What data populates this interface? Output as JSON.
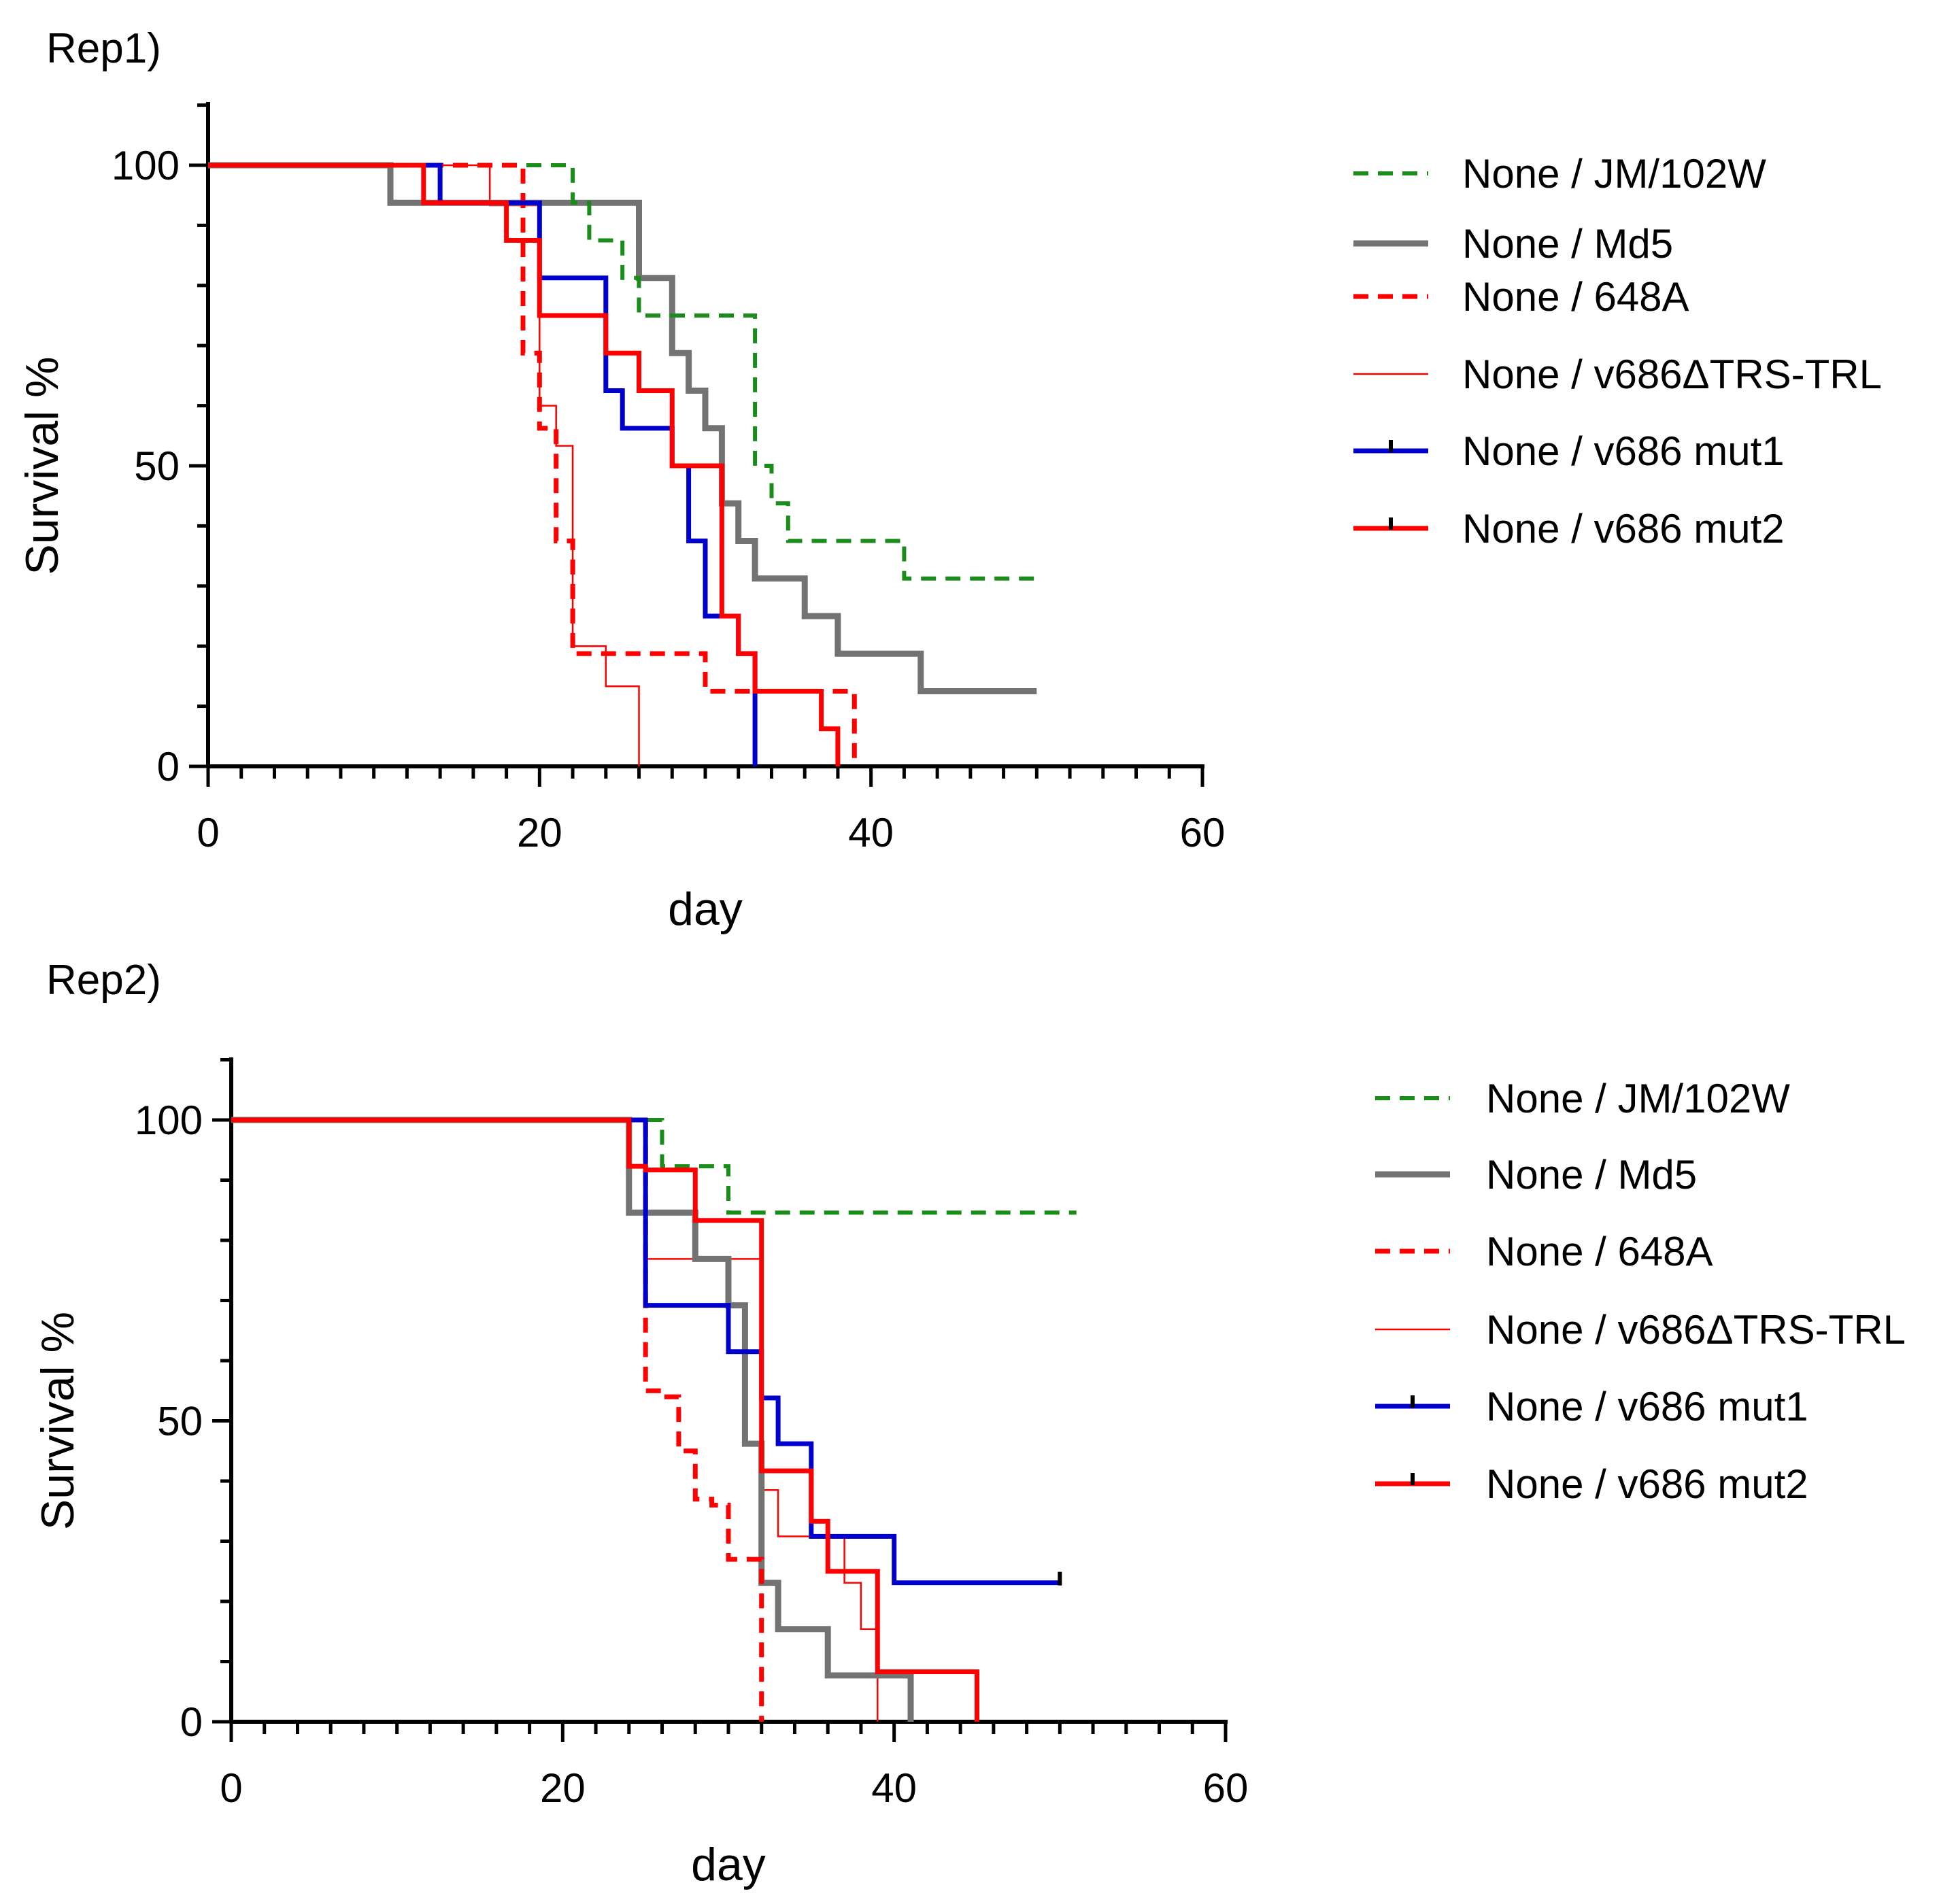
{
  "colors": {
    "green": "#1a8c1a",
    "gray": "#737373",
    "red": "#ff0000",
    "blue": "#0000cc",
    "axis": "#000000"
  },
  "chart_data": [
    {
      "type": "line",
      "subtype": "kaplan-meier",
      "title": "Rep1)",
      "xlabel": "day",
      "ylabel": "Survival %",
      "xlim": [
        0,
        60
      ],
      "ylim": [
        0,
        110
      ],
      "xticks": [
        0,
        20,
        40,
        60
      ],
      "yticks": [
        0,
        50,
        100
      ],
      "legend_position": "right",
      "series": [
        {
          "name": "None / JM/102W",
          "color": "green",
          "style": "dashed",
          "width": 6,
          "tick": false,
          "x": [
            0,
            22,
            22,
            23,
            23,
            25,
            25,
            26,
            26,
            33,
            33,
            34,
            34,
            35,
            35,
            42,
            42,
            50
          ],
          "y": [
            100,
            100,
            93.75,
            93.75,
            87.5,
            87.5,
            81.25,
            81.25,
            75,
            75,
            50,
            50,
            43.75,
            43.75,
            37.5,
            37.5,
            31.25,
            31.25
          ]
        },
        {
          "name": "None / Md5",
          "color": "gray",
          "style": "solid",
          "width": 9,
          "tick": false,
          "x": [
            0,
            11,
            11,
            26,
            26,
            28,
            28,
            29,
            29,
            30,
            30,
            31,
            31,
            32,
            32,
            33,
            33,
            36,
            36,
            38,
            38,
            43,
            43,
            50
          ],
          "y": [
            100,
            100,
            93.75,
            93.75,
            81.25,
            81.25,
            68.75,
            68.75,
            62.5,
            62.5,
            56.25,
            56.25,
            43.75,
            43.75,
            37.5,
            37.5,
            31.25,
            31.25,
            25,
            25,
            18.75,
            18.75,
            12.5,
            12.5
          ]
        },
        {
          "name": "None / 648A",
          "color": "red",
          "style": "dashed",
          "width": 7,
          "tick": false,
          "x": [
            0,
            19,
            19,
            20,
            20,
            21,
            21,
            22,
            22,
            30,
            30,
            39,
            39
          ],
          "y": [
            100,
            100,
            68.75,
            68.75,
            56.25,
            56.25,
            37.5,
            37.5,
            18.75,
            18.75,
            12.5,
            12.5,
            0
          ]
        },
        {
          "name": "None / v686ΔTRS-TRL",
          "color": "red",
          "style": "solid",
          "width": 2.5,
          "tick": false,
          "x": [
            0,
            17,
            17,
            20,
            20,
            21,
            21,
            22,
            22,
            24,
            24,
            26,
            26
          ],
          "y": [
            100,
            100,
            93.33,
            93.33,
            60,
            60,
            53.33,
            53.33,
            20,
            20,
            13.33,
            13.33,
            0
          ]
        },
        {
          "name": "None / v686 mut1",
          "color": "blue",
          "style": "solid",
          "width": 7,
          "tick": true,
          "x": [
            0,
            14,
            14,
            20,
            20,
            24,
            24,
            25,
            25,
            28,
            28,
            29,
            29,
            30,
            30,
            32,
            32,
            33,
            33
          ],
          "y": [
            100,
            100,
            93.75,
            93.75,
            81.25,
            81.25,
            62.5,
            62.5,
            56.25,
            56.25,
            50,
            50,
            37.5,
            37.5,
            25,
            25,
            18.75,
            18.75,
            0
          ]
        },
        {
          "name": "None / v686 mut2",
          "color": "red",
          "style": "solid",
          "width": 7,
          "tick": true,
          "x": [
            0,
            13,
            13,
            18,
            18,
            20,
            20,
            24,
            24,
            26,
            26,
            28,
            28,
            31,
            31,
            32,
            32,
            33,
            33,
            37,
            37,
            38,
            38
          ],
          "y": [
            100,
            100,
            93.75,
            93.75,
            87.5,
            87.5,
            75,
            75,
            68.75,
            68.75,
            62.5,
            62.5,
            50,
            50,
            25,
            25,
            18.75,
            18.75,
            12.5,
            12.5,
            6.25,
            6.25,
            0
          ]
        }
      ]
    },
    {
      "type": "line",
      "subtype": "kaplan-meier",
      "title": "Rep2)",
      "xlabel": "day",
      "ylabel": "Survival %",
      "xlim": [
        0,
        60
      ],
      "ylim": [
        0,
        110
      ],
      "xticks": [
        0,
        20,
        40,
        60
      ],
      "yticks": [
        0,
        50,
        100
      ],
      "legend_position": "right",
      "series": [
        {
          "name": "None / JM/102W",
          "color": "green",
          "style": "dashed",
          "width": 6,
          "tick": false,
          "x": [
            0,
            26,
            26,
            30,
            30,
            51
          ],
          "y": [
            100,
            100,
            92.3,
            92.3,
            84.6,
            84.6
          ]
        },
        {
          "name": "None / Md5",
          "color": "gray",
          "style": "solid",
          "width": 9,
          "tick": false,
          "x": [
            0,
            24,
            24,
            28,
            28,
            30,
            30,
            31,
            31,
            32,
            32,
            33,
            33,
            36,
            36,
            41,
            41
          ],
          "y": [
            100,
            100,
            84.6,
            84.6,
            76.9,
            76.9,
            69.2,
            69.2,
            46.2,
            46.2,
            23.1,
            23.1,
            15.4,
            15.4,
            7.7,
            7.7,
            0
          ]
        },
        {
          "name": "None / 648A",
          "color": "red",
          "style": "dashed",
          "width": 7,
          "tick": false,
          "x": [
            0,
            25,
            25,
            26,
            26,
            27,
            27,
            28,
            28,
            29,
            29,
            30,
            30,
            32,
            32
          ],
          "y": [
            100,
            100,
            55,
            55,
            54,
            54,
            45,
            45,
            37,
            37,
            36,
            36,
            27,
            27,
            0
          ]
        },
        {
          "name": "None / v686ΔTRS-TRL",
          "color": "red",
          "style": "solid",
          "width": 2.5,
          "tick": false,
          "x": [
            0,
            24,
            24,
            25,
            25,
            32,
            32,
            33,
            33,
            37,
            37,
            38,
            38,
            39,
            39
          ],
          "y": [
            100,
            100,
            92.3,
            92.3,
            76.9,
            76.9,
            38.5,
            38.5,
            30.8,
            30.8,
            23.1,
            23.1,
            15.4,
            15.4,
            0
          ]
        },
        {
          "name": "None / v686 mut1",
          "color": "blue",
          "style": "solid",
          "width": 7,
          "tick": true,
          "x": [
            0,
            25,
            25,
            30,
            30,
            32,
            32,
            33,
            33,
            35,
            35,
            40,
            40,
            50
          ],
          "y": [
            100,
            100,
            69.2,
            69.2,
            61.5,
            61.5,
            53.8,
            53.8,
            46.2,
            46.2,
            30.8,
            30.8,
            23.1,
            23.1
          ]
        },
        {
          "name": "None / v686 mut2",
          "color": "red",
          "style": "solid",
          "width": 7,
          "tick": true,
          "x": [
            0,
            24,
            24,
            25,
            25,
            28,
            28,
            32,
            32,
            35,
            35,
            36,
            36,
            39,
            39,
            45,
            45
          ],
          "y": [
            100,
            100,
            92.3,
            92.3,
            91.7,
            91.7,
            83.3,
            83.3,
            41.7,
            41.7,
            33.3,
            33.3,
            25,
            25,
            8.3,
            8.3,
            0
          ]
        }
      ]
    }
  ]
}
